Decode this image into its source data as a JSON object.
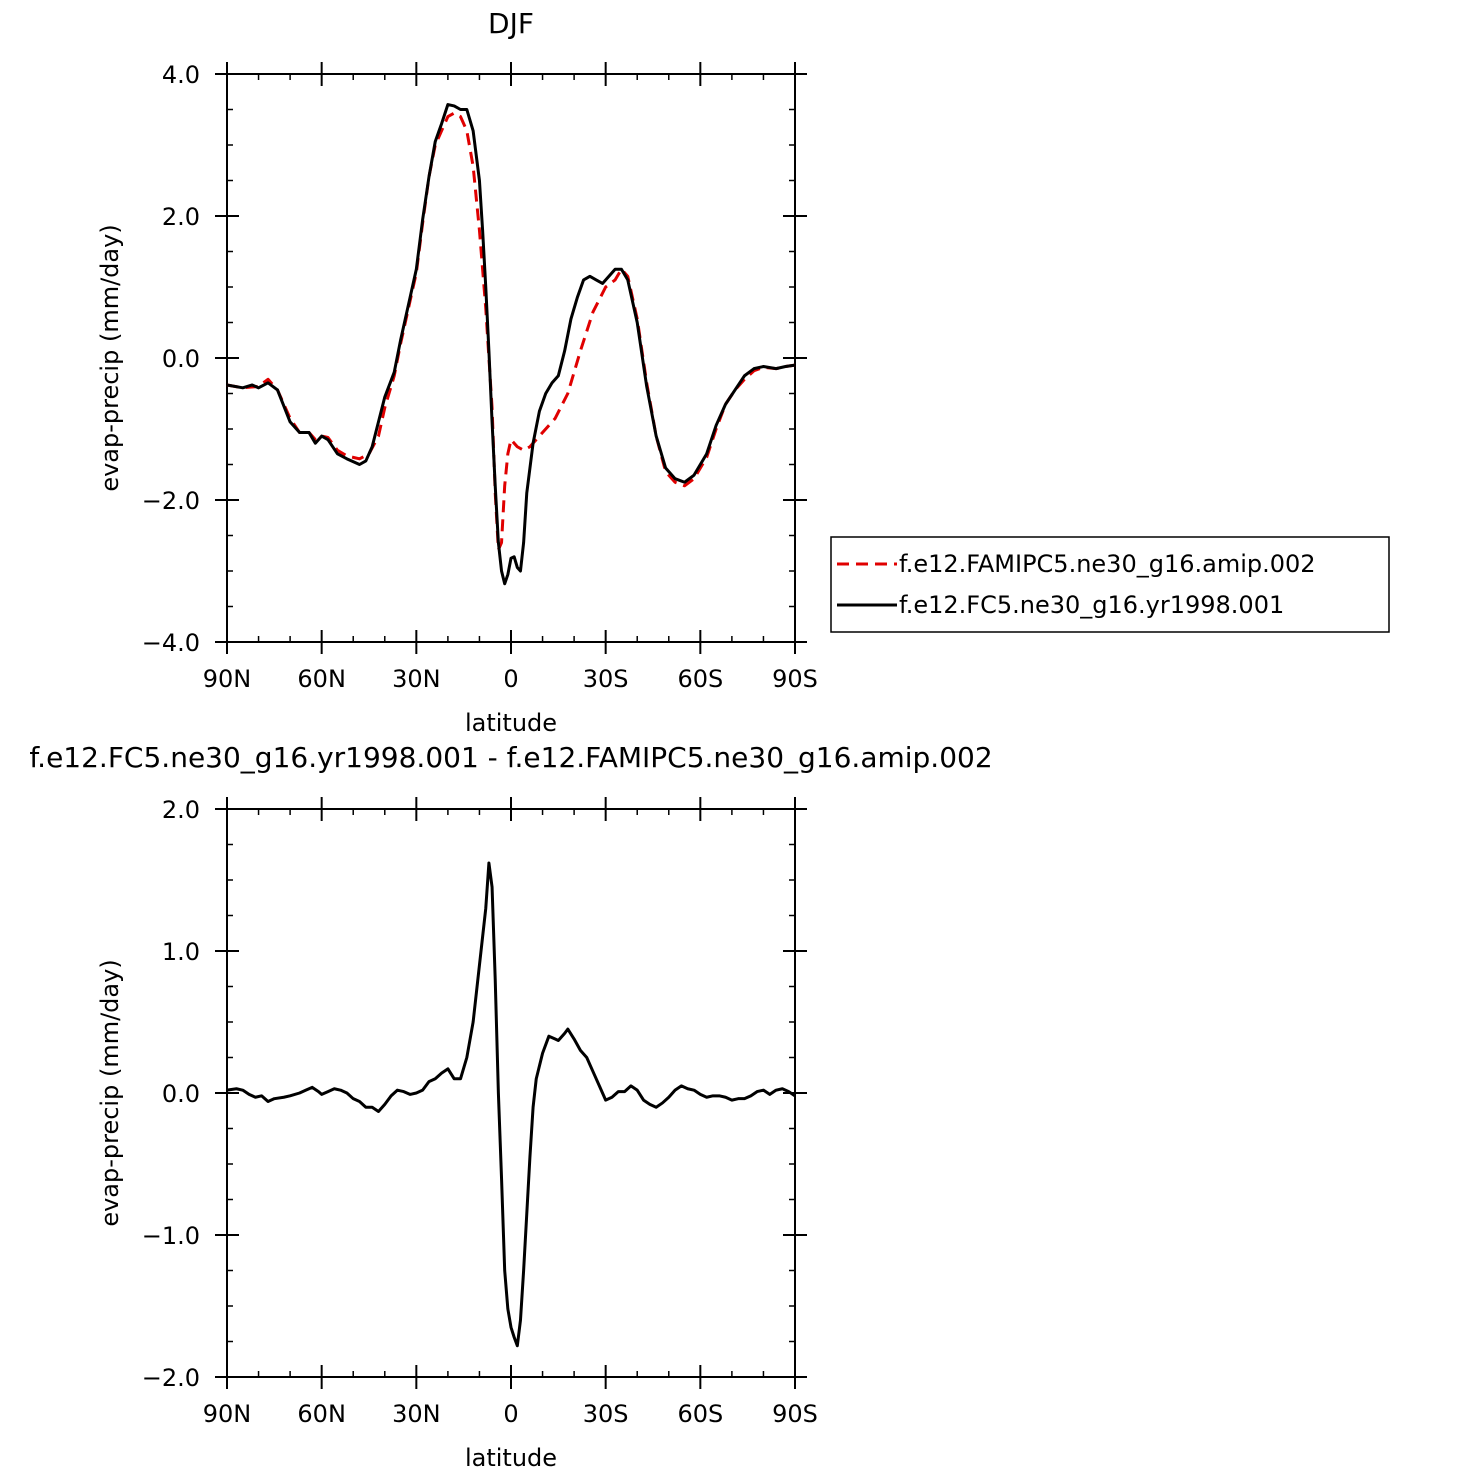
{
  "chart_data": [
    {
      "type": "line",
      "title": "DJF",
      "xlabel": "latitude",
      "ylabel": "evap-precip (mm/day)",
      "xlim": [
        90,
        -90
      ],
      "ylim": [
        -4.0,
        4.0
      ],
      "yticks": [
        -4.0,
        -2.0,
        0.0,
        2.0,
        4.0
      ],
      "ytick_labels": [
        "-4.0",
        "-2.0",
        "0.0",
        "2.0",
        "4.0"
      ],
      "xticks": [
        90,
        60,
        30,
        0,
        -30,
        -60,
        -90
      ],
      "xtick_labels": [
        "90N",
        "60N",
        "30N",
        "0",
        "30S",
        "60S",
        "90S"
      ],
      "legend_position": "right",
      "series": [
        {
          "name": "f.e12.FAMIPC5.ne30_g16.amip.002",
          "color": "#e00000",
          "style": "dashed",
          "points": [
            [
              90,
              -0.38
            ],
            [
              85,
              -0.42
            ],
            [
              80,
              -0.4
            ],
            [
              77,
              -0.3
            ],
            [
              74,
              -0.45
            ],
            [
              70,
              -0.85
            ],
            [
              67,
              -1.05
            ],
            [
              64,
              -1.05
            ],
            [
              62,
              -1.15
            ],
            [
              60,
              -1.1
            ],
            [
              58,
              -1.12
            ],
            [
              55,
              -1.3
            ],
            [
              52,
              -1.38
            ],
            [
              48,
              -1.42
            ],
            [
              45,
              -1.35
            ],
            [
              42,
              -1.1
            ],
            [
              40,
              -0.7
            ],
            [
              37,
              -0.25
            ],
            [
              35,
              0.2
            ],
            [
              32,
              0.8
            ],
            [
              30,
              1.2
            ],
            [
              28,
              1.9
            ],
            [
              26,
              2.55
            ],
            [
              24,
              3.0
            ],
            [
              22,
              3.2
            ],
            [
              20,
              3.4
            ],
            [
              18,
              3.45
            ],
            [
              16,
              3.4
            ],
            [
              14,
              3.2
            ],
            [
              12,
              2.7
            ],
            [
              10,
              1.8
            ],
            [
              8,
              0.7
            ],
            [
              6,
              -0.7
            ],
            [
              5,
              -1.9
            ],
            [
              4,
              -2.7
            ],
            [
              3,
              -2.6
            ],
            [
              2,
              -1.8
            ],
            [
              1,
              -1.35
            ],
            [
              0,
              -1.15
            ],
            [
              -2,
              -1.25
            ],
            [
              -4,
              -1.3
            ],
            [
              -6,
              -1.25
            ],
            [
              -10,
              -1.05
            ],
            [
              -14,
              -0.85
            ],
            [
              -18,
              -0.5
            ],
            [
              -22,
              0.1
            ],
            [
              -26,
              0.65
            ],
            [
              -30,
              1.0
            ],
            [
              -33,
              1.1
            ],
            [
              -35,
              1.25
            ],
            [
              -37,
              1.15
            ],
            [
              -40,
              0.55
            ],
            [
              -43,
              -0.35
            ],
            [
              -46,
              -1.1
            ],
            [
              -49,
              -1.6
            ],
            [
              -52,
              -1.75
            ],
            [
              -55,
              -1.8
            ],
            [
              -58,
              -1.7
            ],
            [
              -62,
              -1.4
            ],
            [
              -65,
              -1.0
            ],
            [
              -68,
              -0.65
            ],
            [
              -71,
              -0.45
            ],
            [
              -74,
              -0.3
            ],
            [
              -77,
              -0.18
            ],
            [
              -80,
              -0.13
            ],
            [
              -84,
              -0.15
            ],
            [
              -87,
              -0.12
            ],
            [
              -90,
              -0.1
            ]
          ]
        },
        {
          "name": "f.e12.FC5.ne30_g16.yr1998.001",
          "color": "#000000",
          "style": "solid",
          "points": [
            [
              90,
              -0.38
            ],
            [
              85,
              -0.42
            ],
            [
              82,
              -0.38
            ],
            [
              80,
              -0.42
            ],
            [
              77,
              -0.35
            ],
            [
              74,
              -0.45
            ],
            [
              70,
              -0.9
            ],
            [
              67,
              -1.05
            ],
            [
              64,
              -1.05
            ],
            [
              62,
              -1.2
            ],
            [
              60,
              -1.1
            ],
            [
              58,
              -1.15
            ],
            [
              55,
              -1.35
            ],
            [
              52,
              -1.42
            ],
            [
              48,
              -1.5
            ],
            [
              46,
              -1.45
            ],
            [
              44,
              -1.25
            ],
            [
              42,
              -0.9
            ],
            [
              40,
              -0.55
            ],
            [
              37,
              -0.2
            ],
            [
              35,
              0.25
            ],
            [
              32,
              0.85
            ],
            [
              30,
              1.25
            ],
            [
              28,
              1.95
            ],
            [
              26,
              2.55
            ],
            [
              24,
              3.05
            ],
            [
              22,
              3.3
            ],
            [
              20,
              3.57
            ],
            [
              18,
              3.55
            ],
            [
              16,
              3.5
            ],
            [
              14,
              3.5
            ],
            [
              12,
              3.2
            ],
            [
              10,
              2.5
            ],
            [
              9,
              1.8
            ],
            [
              8,
              1.0
            ],
            [
              7,
              0.1
            ],
            [
              6,
              -0.9
            ],
            [
              5,
              -1.8
            ],
            [
              4,
              -2.6
            ],
            [
              3,
              -3.0
            ],
            [
              2,
              -3.18
            ],
            [
              1,
              -3.05
            ],
            [
              0,
              -2.82
            ],
            [
              -1,
              -2.8
            ],
            [
              -2,
              -2.95
            ],
            [
              -3,
              -3.0
            ],
            [
              -4,
              -2.6
            ],
            [
              -5,
              -1.9
            ],
            [
              -7,
              -1.2
            ],
            [
              -9,
              -0.75
            ],
            [
              -11,
              -0.5
            ],
            [
              -13,
              -0.35
            ],
            [
              -15,
              -0.25
            ],
            [
              -17,
              0.1
            ],
            [
              -19,
              0.55
            ],
            [
              -21,
              0.85
            ],
            [
              -23,
              1.1
            ],
            [
              -25,
              1.15
            ],
            [
              -27,
              1.1
            ],
            [
              -29,
              1.05
            ],
            [
              -31,
              1.15
            ],
            [
              -33,
              1.25
            ],
            [
              -35,
              1.25
            ],
            [
              -37,
              1.1
            ],
            [
              -40,
              0.5
            ],
            [
              -43,
              -0.4
            ],
            [
              -46,
              -1.1
            ],
            [
              -49,
              -1.55
            ],
            [
              -52,
              -1.7
            ],
            [
              -55,
              -1.75
            ],
            [
              -58,
              -1.65
            ],
            [
              -62,
              -1.35
            ],
            [
              -65,
              -0.95
            ],
            [
              -68,
              -0.65
            ],
            [
              -71,
              -0.45
            ],
            [
              -74,
              -0.25
            ],
            [
              -77,
              -0.15
            ],
            [
              -80,
              -0.12
            ],
            [
              -84,
              -0.15
            ],
            [
              -87,
              -0.12
            ],
            [
              -90,
              -0.1
            ]
          ]
        }
      ]
    },
    {
      "type": "line",
      "title": "f.e12.FC5.ne30_g16.yr1998.001 - f.e12.FAMIPC5.ne30_g16.amip.002",
      "xlabel": "latitude",
      "ylabel": "evap-precip (mm/day)",
      "xlim": [
        90,
        -90
      ],
      "ylim": [
        -2.0,
        2.0
      ],
      "yticks": [
        -2.0,
        -1.0,
        0.0,
        1.0,
        2.0
      ],
      "ytick_labels": [
        "-2.0",
        "-1.0",
        "0.0",
        "1.0",
        "2.0"
      ],
      "xticks": [
        90,
        60,
        30,
        0,
        -30,
        -60,
        -90
      ],
      "xtick_labels": [
        "90N",
        "60N",
        "30N",
        "0",
        "30S",
        "60S",
        "90S"
      ],
      "series": [
        {
          "color": "#000000",
          "style": "solid",
          "points": [
            [
              90,
              0.02
            ],
            [
              87,
              0.03
            ],
            [
              85,
              0.02
            ],
            [
              83,
              -0.01
            ],
            [
              81,
              -0.03
            ],
            [
              79,
              -0.02
            ],
            [
              77,
              -0.06
            ],
            [
              75,
              -0.04
            ],
            [
              72,
              -0.03
            ],
            [
              70,
              -0.02
            ],
            [
              67,
              0.0
            ],
            [
              65,
              0.02
            ],
            [
              63,
              0.04
            ],
            [
              61,
              0.01
            ],
            [
              60,
              -0.01
            ],
            [
              58,
              0.01
            ],
            [
              56,
              0.03
            ],
            [
              54,
              0.02
            ],
            [
              52,
              0.0
            ],
            [
              50,
              -0.04
            ],
            [
              48,
              -0.06
            ],
            [
              46,
              -0.1
            ],
            [
              44,
              -0.1
            ],
            [
              42,
              -0.13
            ],
            [
              40,
              -0.08
            ],
            [
              38,
              -0.02
            ],
            [
              36,
              0.02
            ],
            [
              34,
              0.01
            ],
            [
              32,
              -0.01
            ],
            [
              30,
              0.0
            ],
            [
              28,
              0.02
            ],
            [
              26,
              0.08
            ],
            [
              24,
              0.1
            ],
            [
              22,
              0.14
            ],
            [
              20,
              0.17
            ],
            [
              18,
              0.1
            ],
            [
              16,
              0.1
            ],
            [
              14,
              0.25
            ],
            [
              12,
              0.5
            ],
            [
              10,
              0.9
            ],
            [
              8,
              1.3
            ],
            [
              7,
              1.62
            ],
            [
              6,
              1.45
            ],
            [
              5,
              0.8
            ],
            [
              4,
              0.0
            ],
            [
              3,
              -0.6
            ],
            [
              2,
              -1.25
            ],
            [
              1,
              -1.52
            ],
            [
              0,
              -1.65
            ],
            [
              -1,
              -1.72
            ],
            [
              -2,
              -1.78
            ],
            [
              -3,
              -1.6
            ],
            [
              -4,
              -1.25
            ],
            [
              -5,
              -0.85
            ],
            [
              -6,
              -0.45
            ],
            [
              -7,
              -0.1
            ],
            [
              -8,
              0.1
            ],
            [
              -10,
              0.28
            ],
            [
              -12,
              0.4
            ],
            [
              -14,
              0.38
            ],
            [
              -15,
              0.37
            ],
            [
              -17,
              0.42
            ],
            [
              -18,
              0.45
            ],
            [
              -20,
              0.38
            ],
            [
              -22,
              0.3
            ],
            [
              -24,
              0.25
            ],
            [
              -26,
              0.15
            ],
            [
              -28,
              0.05
            ],
            [
              -30,
              -0.05
            ],
            [
              -32,
              -0.03
            ],
            [
              -34,
              0.01
            ],
            [
              -36,
              0.01
            ],
            [
              -37,
              0.03
            ],
            [
              -38,
              0.05
            ],
            [
              -40,
              0.02
            ],
            [
              -42,
              -0.05
            ],
            [
              -44,
              -0.08
            ],
            [
              -46,
              -0.1
            ],
            [
              -48,
              -0.07
            ],
            [
              -50,
              -0.03
            ],
            [
              -52,
              0.02
            ],
            [
              -54,
              0.05
            ],
            [
              -56,
              0.03
            ],
            [
              -58,
              0.02
            ],
            [
              -60,
              -0.01
            ],
            [
              -62,
              -0.03
            ],
            [
              -64,
              -0.02
            ],
            [
              -66,
              -0.02
            ],
            [
              -68,
              -0.03
            ],
            [
              -70,
              -0.05
            ],
            [
              -72,
              -0.04
            ],
            [
              -74,
              -0.04
            ],
            [
              -76,
              -0.02
            ],
            [
              -78,
              0.01
            ],
            [
              -80,
              0.02
            ],
            [
              -82,
              -0.01
            ],
            [
              -84,
              0.02
            ],
            [
              -86,
              0.03
            ],
            [
              -88,
              0.01
            ],
            [
              -90,
              -0.02
            ]
          ]
        }
      ]
    }
  ]
}
